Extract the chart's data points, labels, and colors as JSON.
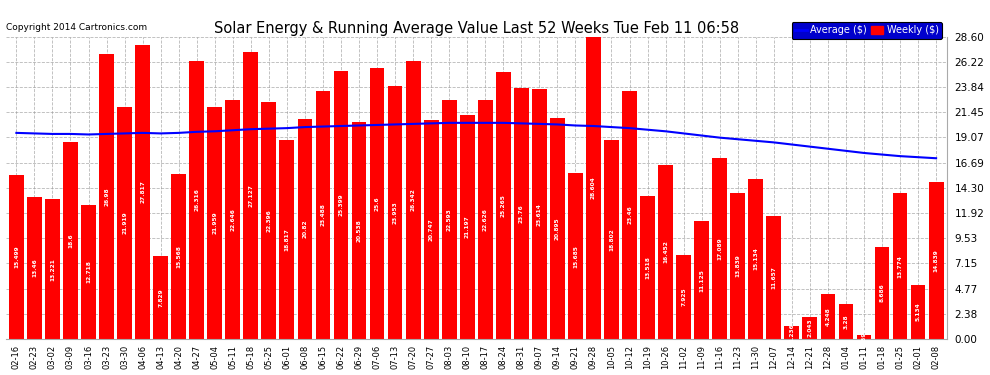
{
  "title": "Solar Energy & Running Average Value Last 52 Weeks Tue Feb 11 06:58",
  "copyright": "Copyright 2014 Cartronics.com",
  "ylim": [
    0,
    28.6
  ],
  "yticks": [
    0.0,
    2.38,
    4.77,
    7.15,
    9.53,
    11.92,
    14.3,
    16.69,
    19.07,
    21.45,
    23.84,
    26.22,
    28.6
  ],
  "bar_color": "#ff0000",
  "avg_line_color": "blue",
  "background_color": "#ffffff",
  "grid_color": "#999999",
  "dates": [
    "02-16",
    "02-23",
    "03-02",
    "03-09",
    "03-16",
    "03-23",
    "03-30",
    "04-06",
    "04-13",
    "04-20",
    "04-27",
    "05-04",
    "05-11",
    "05-18",
    "05-25",
    "06-01",
    "06-08",
    "06-15",
    "06-22",
    "06-29",
    "07-06",
    "07-13",
    "07-20",
    "07-27",
    "08-03",
    "08-10",
    "08-17",
    "08-24",
    "08-31",
    "09-07",
    "09-14",
    "09-21",
    "09-28",
    "10-05",
    "10-12",
    "10-19",
    "10-26",
    "11-02",
    "11-09",
    "11-16",
    "11-23",
    "11-30",
    "12-07",
    "12-14",
    "12-21",
    "12-28",
    "01-04",
    "01-11",
    "01-18",
    "01-25",
    "02-01",
    "02-08"
  ],
  "weekly_values": [
    15.499,
    13.46,
    13.221,
    18.6,
    12.718,
    26.98,
    21.919,
    27.817,
    7.829,
    15.568,
    26.316,
    21.959,
    22.646,
    27.127,
    22.396,
    18.817,
    20.82,
    23.488,
    25.399,
    20.538,
    25.6,
    23.953,
    26.342,
    20.747,
    22.593,
    21.197,
    22.626,
    25.265,
    23.76,
    23.614,
    20.895,
    15.685,
    28.604,
    18.802,
    23.46,
    13.518,
    16.452,
    7.925,
    11.125,
    17.089,
    13.839,
    15.134,
    11.657,
    1.236,
    2.043,
    4.248,
    3.28,
    0.392,
    8.686,
    13.774,
    5.134,
    14.839
  ],
  "avg_values": [
    19.5,
    19.45,
    19.4,
    19.4,
    19.35,
    19.4,
    19.45,
    19.5,
    19.45,
    19.5,
    19.6,
    19.65,
    19.75,
    19.85,
    19.9,
    19.95,
    20.05,
    20.1,
    20.15,
    20.2,
    20.25,
    20.3,
    20.35,
    20.4,
    20.45,
    20.45,
    20.45,
    20.45,
    20.4,
    20.35,
    20.3,
    20.2,
    20.15,
    20.05,
    19.95,
    19.8,
    19.65,
    19.45,
    19.25,
    19.05,
    18.9,
    18.75,
    18.6,
    18.4,
    18.2,
    18.0,
    17.8,
    17.6,
    17.45,
    17.3,
    17.2,
    17.1
  ]
}
